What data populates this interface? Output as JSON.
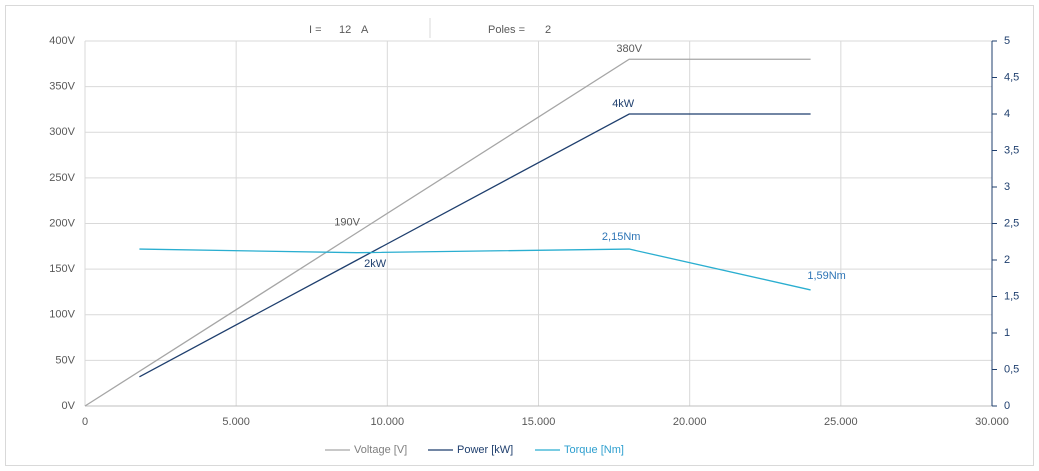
{
  "header": {
    "current_label": "I =",
    "current_value": "12",
    "current_unit": "A",
    "poles_label": "Poles =",
    "poles_value": "2"
  },
  "chart_data": {
    "type": "line",
    "xlim": [
      0,
      30000
    ],
    "xticks": [
      0,
      {
        "value": 5000,
        "label": "5.000"
      },
      {
        "value": 10000,
        "label": "10.000"
      },
      {
        "value": 15000,
        "label": "15.000"
      },
      {
        "value": 20000,
        "label": "20.000"
      },
      {
        "value": 25000,
        "label": "25.000"
      },
      {
        "value": 30000,
        "label": "30.000"
      }
    ],
    "ylim": [
      0,
      400
    ],
    "yticks": [
      {
        "value": 0,
        "label": "0V"
      },
      {
        "value": 50,
        "label": "50V"
      },
      {
        "value": 100,
        "label": "100V"
      },
      {
        "value": 150,
        "label": "150V"
      },
      {
        "value": 200,
        "label": "200V"
      },
      {
        "value": 250,
        "label": "250V"
      },
      {
        "value": 300,
        "label": "300V"
      },
      {
        "value": 350,
        "label": "350V"
      },
      {
        "value": 400,
        "label": "400V"
      }
    ],
    "y2lim": [
      0,
      5
    ],
    "y2ticks": [
      0,
      {
        "value": 0.5,
        "label": "0,5"
      },
      1,
      {
        "value": 1.5,
        "label": "1,5"
      },
      2,
      {
        "value": 2.5,
        "label": "2,5"
      },
      3,
      {
        "value": 3.5,
        "label": "3,5"
      },
      4,
      {
        "value": 4.5,
        "label": "4,5"
      },
      5
    ],
    "grid": true,
    "legend": "bottom",
    "series": [
      {
        "name": "Voltage [V]",
        "color": "#a6a6a6",
        "x": [
          0,
          9000,
          18000,
          24000
        ],
        "values": [
          0,
          190,
          380,
          380
        ],
        "value_labels": [
          null,
          "190V",
          "380V",
          null
        ]
      },
      {
        "name": "Power [kW]",
        "color": "#1f3f6e",
        "axis": "y2",
        "x": [
          1800,
          9000,
          18000,
          24000
        ],
        "values": [
          0.4,
          2,
          4,
          4
        ],
        "value_labels": [
          null,
          "2kW",
          "4kW",
          null
        ]
      },
      {
        "name": "Torque [Nm]",
        "color": "#2aaed0",
        "axis": "y2",
        "x": [
          1800,
          9000,
          18000,
          24000
        ],
        "values": [
          2.15,
          2.1,
          2.15,
          1.59
        ],
        "value_labels": [
          null,
          null,
          "2,15Nm",
          "1,59Nm"
        ]
      }
    ]
  }
}
